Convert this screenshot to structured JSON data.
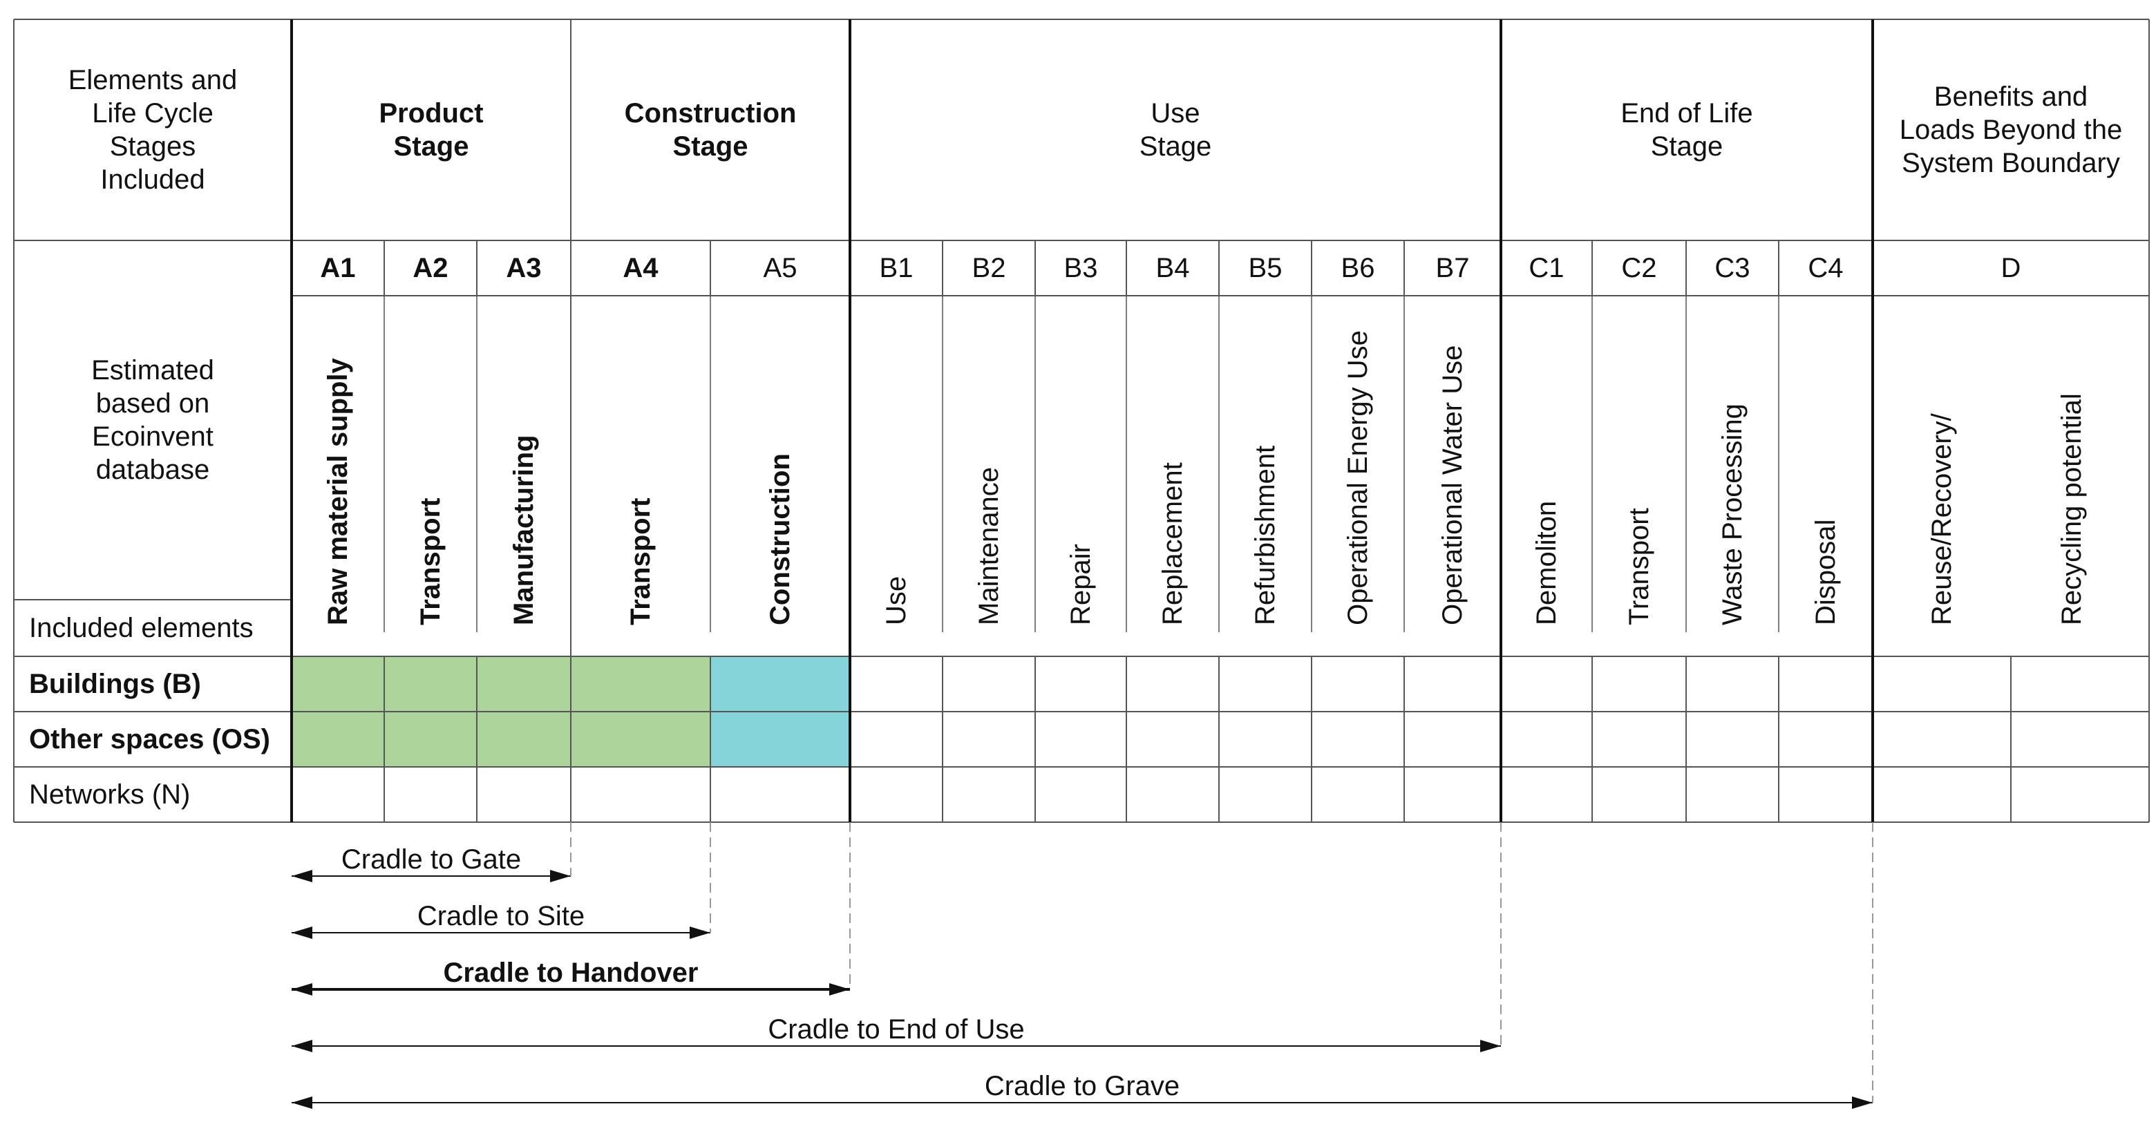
{
  "header": {
    "elements_stages": "Elements and\nLife Cycle\nStages\nIncluded",
    "product_stage": "Product\nStage",
    "construction_stage": "Construction\nStage",
    "use_stage": "Use\nStage",
    "end_of_life_stage": "End of Life\nStage",
    "benefits": "Benefits and\nLoads Beyond the\nSystem Boundary"
  },
  "estimated_label": "Estimated\nbased on\nEcoinvent\ndatabase",
  "included_elements_label": "Included elements",
  "modules": [
    {
      "code": "A1",
      "name": "Raw material supply",
      "bold": true
    },
    {
      "code": "A2",
      "name": "Transport",
      "bold": true
    },
    {
      "code": "A3",
      "name": "Manufacturing",
      "bold": true
    },
    {
      "code": "A4",
      "name": "Transport",
      "bold": true
    },
    {
      "code": "A5",
      "name": "Construction",
      "bold": false,
      "name_bold": true
    },
    {
      "code": "B1",
      "name": "Use"
    },
    {
      "code": "B2",
      "name": "Maintenance"
    },
    {
      "code": "B3",
      "name": "Repair"
    },
    {
      "code": "B4",
      "name": "Replacement"
    },
    {
      "code": "B5",
      "name": "Refurbishment"
    },
    {
      "code": "B6",
      "name": "Operational Energy Use"
    },
    {
      "code": "B7",
      "name": "Operational Water Use"
    },
    {
      "code": "C1",
      "name": "Demoliton"
    },
    {
      "code": "C2",
      "name": "Transport"
    },
    {
      "code": "C3",
      "name": "Waste Processing"
    },
    {
      "code": "C4",
      "name": "Disposal"
    }
  ],
  "module_d": {
    "code": "D",
    "names": [
      "Reuse/Recovery/",
      "Recycling potential"
    ]
  },
  "rows": [
    {
      "label": "Buildings (B)",
      "bold": true,
      "green_modules": [
        "A1",
        "A2",
        "A3",
        "A4"
      ],
      "cyan_modules": [
        "A5"
      ]
    },
    {
      "label": "Other spaces (OS)",
      "bold": true,
      "green_modules": [
        "A1",
        "A2",
        "A3",
        "A4"
      ],
      "cyan_modules": [
        "A5"
      ]
    },
    {
      "label": "Networks (N)",
      "bold": false,
      "green_modules": [],
      "cyan_modules": []
    }
  ],
  "colors": {
    "green": "#acd49b",
    "cyan": "#84d4da",
    "line": "#555555",
    "thick": "#111111"
  },
  "ranges": [
    {
      "label": "Cradle to Gate",
      "end_module": "A3",
      "bold": false
    },
    {
      "label": "Cradle to Site",
      "end_module": "A4",
      "bold": false
    },
    {
      "label": "Cradle to Handover",
      "end_module": "A5",
      "bold": true
    },
    {
      "label": "Cradle to End of Use",
      "end_module": "B7",
      "bold": false
    },
    {
      "label": "Cradle to Grave",
      "end_module": "C4",
      "bold": false
    }
  ]
}
